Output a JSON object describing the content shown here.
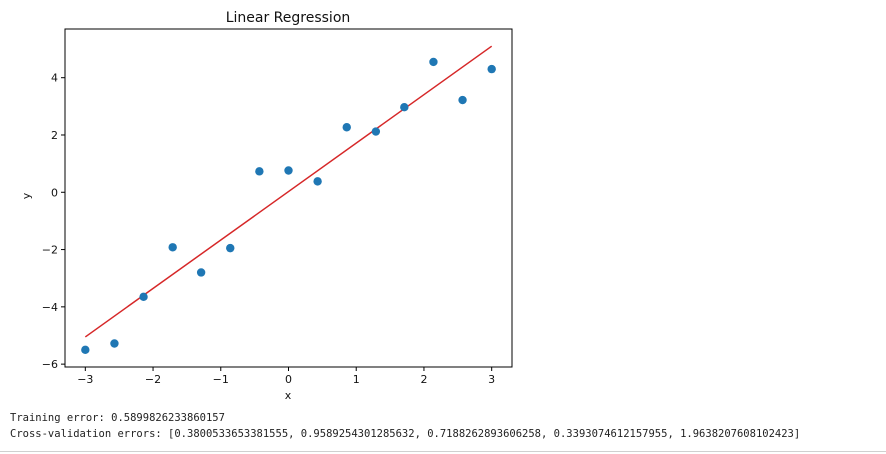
{
  "chart_data": {
    "type": "scatter",
    "title": "Linear Regression",
    "xlabel": "x",
    "ylabel": "y",
    "xlim": [
      -3.3,
      3.3
    ],
    "ylim": [
      -6.1,
      5.7
    ],
    "xticks": [
      -3,
      -2,
      -1,
      0,
      1,
      2,
      3
    ],
    "xtick_labels": [
      "−3",
      "−2",
      "−1",
      "0",
      "1",
      "2",
      "3"
    ],
    "yticks": [
      -6,
      -4,
      -2,
      0,
      2,
      4
    ],
    "ytick_labels": [
      "−6",
      "−4",
      "−2",
      "0",
      "2",
      "4"
    ],
    "grid": false,
    "series": [
      {
        "type": "scatter",
        "color": "#1f77b4",
        "x": [
          -3.0,
          -2.57,
          -2.14,
          -1.71,
          -1.29,
          -0.86,
          -0.43,
          0.0,
          0.43,
          0.86,
          1.29,
          1.71,
          2.14,
          2.57,
          3.0
        ],
        "y": [
          -5.5,
          -5.28,
          -3.65,
          -1.92,
          -2.8,
          -1.95,
          0.73,
          0.76,
          0.38,
          2.27,
          2.12,
          2.97,
          4.55,
          3.22,
          4.3
        ]
      },
      {
        "type": "line",
        "color": "#d62728",
        "x": [
          -3.0,
          3.0
        ],
        "y": [
          -5.05,
          5.1
        ]
      }
    ]
  },
  "output": {
    "training_error": "Training error: 0.5899826233860157",
    "cv_errors": "Cross-validation errors: [0.3800533653381555, 0.9589254301285632, 0.7188262893606258, 0.3393074612157955, 1.9638207608102423]"
  }
}
